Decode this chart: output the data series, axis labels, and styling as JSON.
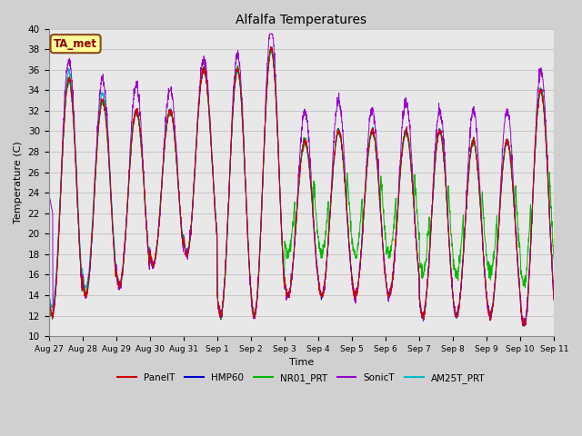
{
  "title": "Alfalfa Temperatures",
  "xlabel": "Time",
  "ylabel": "Temperature (C)",
  "ylim": [
    10,
    40
  ],
  "yticks": [
    10,
    12,
    14,
    16,
    18,
    20,
    22,
    24,
    26,
    28,
    30,
    32,
    34,
    36,
    38,
    40
  ],
  "annotation_text": "TA_met",
  "annotation_box_facecolor": "#FFFF99",
  "annotation_text_color": "#8B0000",
  "annotation_edge_color": "#8B4513",
  "fig_facecolor": "#D0D0D0",
  "ax_facecolor": "#E8E8E8",
  "colors": {
    "PanelT": "#CC0000",
    "HMP60": "#0000CC",
    "NR01_PRT": "#00BB00",
    "SonicT": "#9900CC",
    "AM25T_PRT": "#00BBCC"
  },
  "series_order": [
    "AM25T_PRT",
    "HMP60",
    "NR01_PRT",
    "SonicT",
    "PanelT"
  ],
  "legend_order": [
    "PanelT",
    "HMP60",
    "NR01_PRT",
    "SonicT",
    "AM25T_PRT"
  ],
  "n_days": 15,
  "points_per_day": 144,
  "grid_color": "#BBBBBB",
  "day_labels": [
    "Aug 27",
    "Aug 28",
    "Aug 29",
    "Aug 30",
    "Aug 31",
    "Sep 1",
    "Sep 2",
    "Sep 3",
    "Sep 4",
    "Sep 5",
    "Sep 6",
    "Sep 7",
    "Sep 8",
    "Sep 9",
    "Sep 10",
    "Sep 11"
  ]
}
